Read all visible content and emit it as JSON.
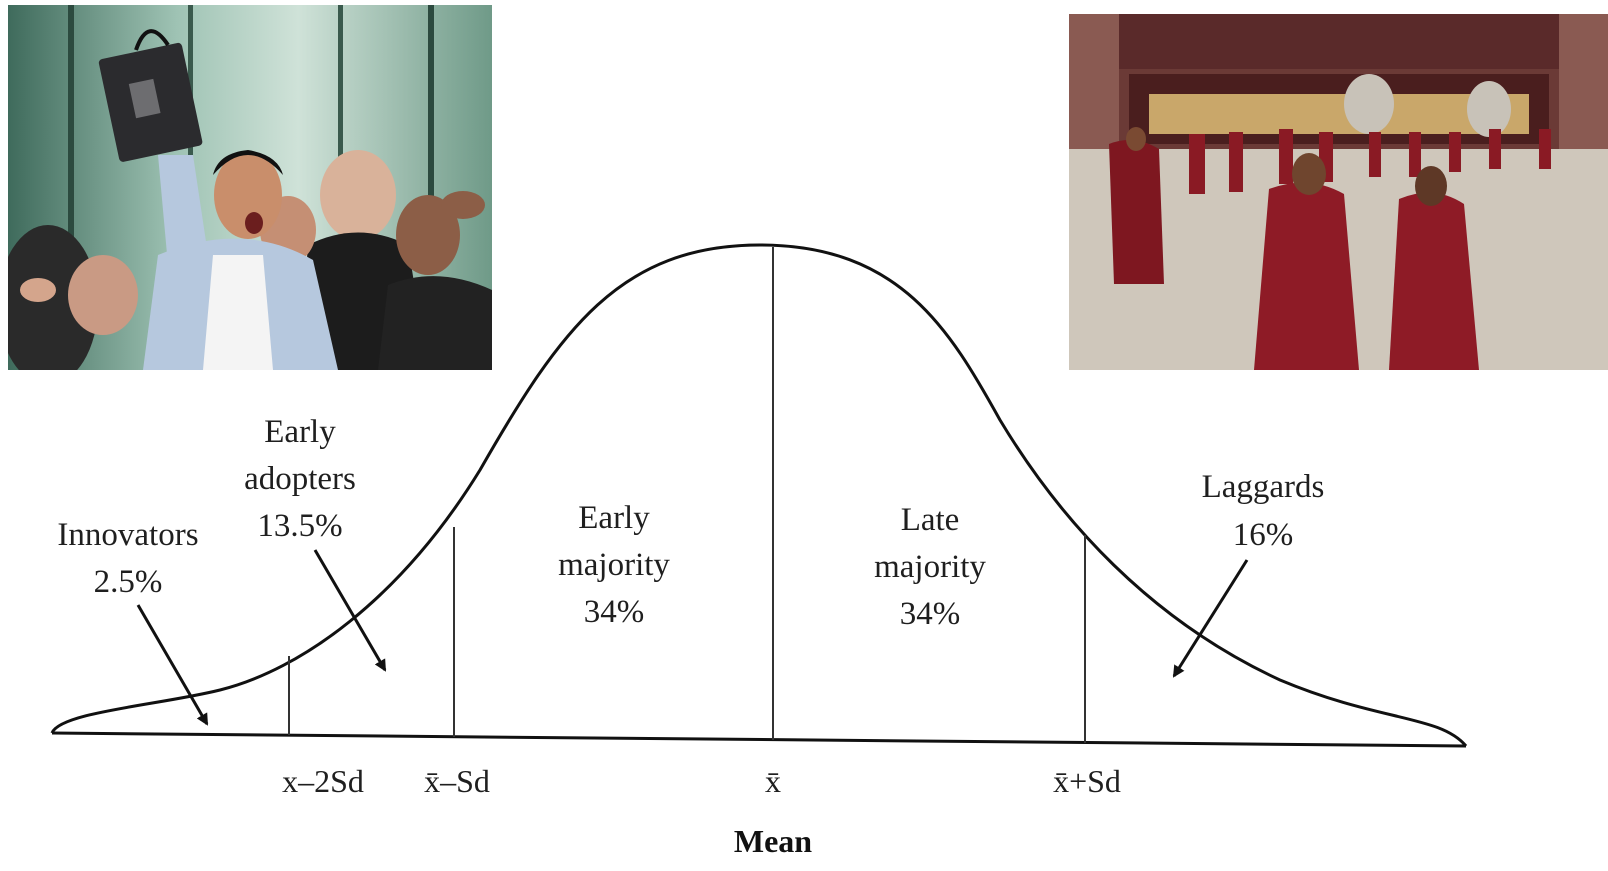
{
  "photos": {
    "left": {
      "subject": "crowd-cheering-photo"
    },
    "right": {
      "subject": "monks-courtyard-photo"
    }
  },
  "segments": {
    "innovators": {
      "name": "Innovators",
      "share": "2.5%"
    },
    "early_adopters": {
      "name_line1": "Early",
      "name_line2": "adopters",
      "share": "13.5%"
    },
    "early_majority": {
      "name_line1": "Early",
      "name_line2": "majority",
      "share": "34%"
    },
    "late_majority": {
      "name_line1": "Late",
      "name_line2": "majority",
      "share": "34%"
    },
    "laggards": {
      "name": "Laggards",
      "share": "16%"
    }
  },
  "axis": {
    "tick_minus_2sd": "x–2Sd",
    "tick_minus_sd": "x̄–Sd",
    "tick_mean": "x̄",
    "tick_plus_sd": "x̄+Sd",
    "caption": "Mean"
  },
  "colors": {
    "curve": "#111111",
    "text": "#1f1f1f",
    "robe": "#8a1a24"
  }
}
